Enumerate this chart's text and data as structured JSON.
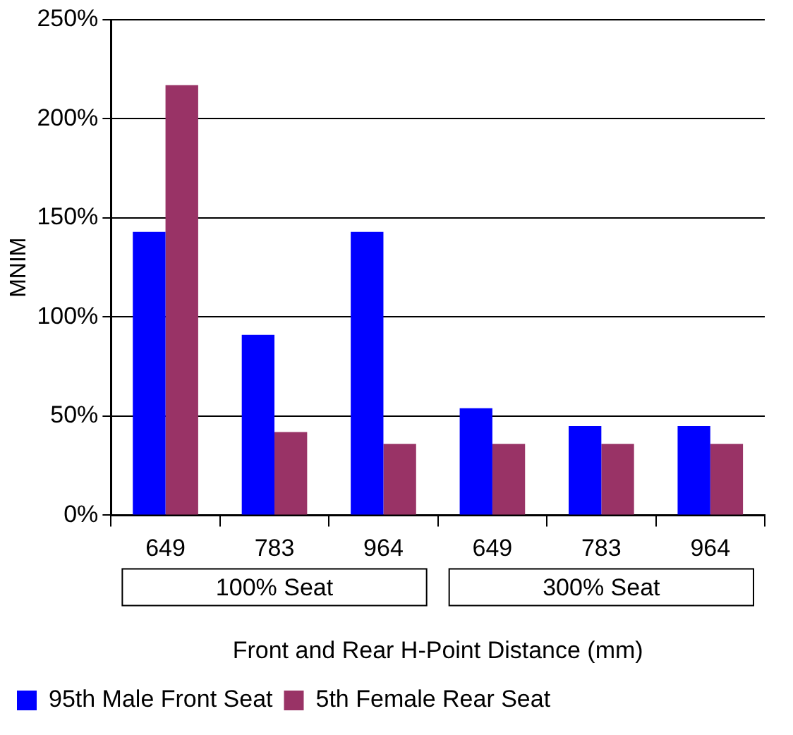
{
  "chart_data": {
    "type": "bar",
    "ylabel": "MNIM",
    "xlabel": "Front and Rear H-Point Distance (mm)",
    "categories": [
      "649",
      "783",
      "964",
      "649",
      "783",
      "964"
    ],
    "series": [
      {
        "name": "95th Male Front Seat",
        "color": "#0000ff",
        "values": [
          143,
          91,
          143,
          54,
          45,
          45
        ]
      },
      {
        "name": "5th Female Rear Seat",
        "color": "#993366",
        "values": [
          217,
          42,
          36,
          36,
          36,
          36
        ]
      }
    ],
    "ylim": [
      0,
      250
    ],
    "yticks": [
      {
        "value": 0,
        "label": "0%"
      },
      {
        "value": 50,
        "label": "50%"
      },
      {
        "value": 100,
        "label": "100%"
      },
      {
        "value": 150,
        "label": "150%"
      },
      {
        "value": 200,
        "label": "200%"
      },
      {
        "value": 250,
        "label": "250%"
      }
    ],
    "annotations": [
      "100% Seat",
      "300% Seat"
    ],
    "grid": "y",
    "legend": "bottom"
  }
}
